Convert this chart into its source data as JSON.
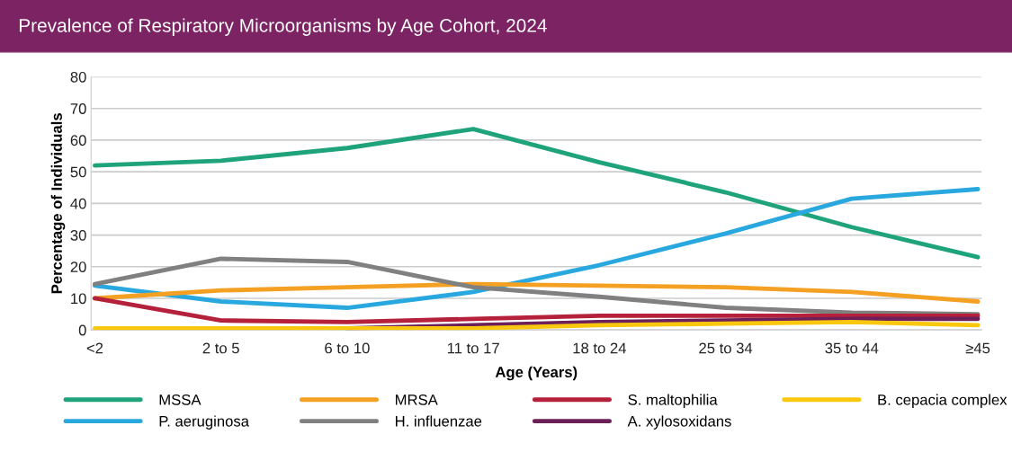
{
  "chart_data": {
    "type": "line",
    "title": "Prevalence of Respiratory Microorganisms by Age Cohort, 2024",
    "xlabel": "Age (Years)",
    "ylabel": "Percentage of Individuals",
    "categories": [
      "<2",
      "2 to 5",
      "6 to 10",
      "11 to 17",
      "18 to 24",
      "25 to 34",
      "35 to 44",
      "≥45"
    ],
    "series": [
      {
        "name": "MSSA",
        "color": "#1fa37a",
        "values": [
          52,
          53.5,
          57.5,
          63.5,
          53,
          43.5,
          32.5,
          23
        ]
      },
      {
        "name": "P. aeruginosa",
        "color": "#29a8e0",
        "values": [
          14,
          9,
          7,
          12,
          20.5,
          30.5,
          41.5,
          44.5
        ]
      },
      {
        "name": "MRSA",
        "color": "#f4a023",
        "values": [
          10,
          12.5,
          13.5,
          14.5,
          14,
          13.5,
          12,
          9
        ]
      },
      {
        "name": "H. influenzae",
        "color": "#808080",
        "values": [
          14.5,
          22.5,
          21.5,
          13.5,
          10.5,
          7,
          5.5,
          5
        ]
      },
      {
        "name": "S. maltophilia",
        "color": "#b5213a",
        "values": [
          10,
          3,
          2.5,
          3.5,
          4.5,
          4.5,
          4.5,
          4.5
        ]
      },
      {
        "name": "A. xylosoxidans",
        "color": "#6d1f5a",
        "values": [
          null,
          null,
          0.5,
          1.5,
          2.5,
          3,
          3.5,
          3.5
        ]
      },
      {
        "name": "B. cepacia complex",
        "color": "#f9c80e",
        "values": [
          0.5,
          0.5,
          0.5,
          0.5,
          1.5,
          2,
          2.5,
          1.5
        ]
      }
    ],
    "ylim": [
      0,
      80
    ],
    "yticks": [
      0,
      10,
      20,
      30,
      40,
      50,
      60,
      70,
      80
    ],
    "grid": "y",
    "legend": "bottom",
    "marker": "none",
    "line_style": "solid"
  }
}
